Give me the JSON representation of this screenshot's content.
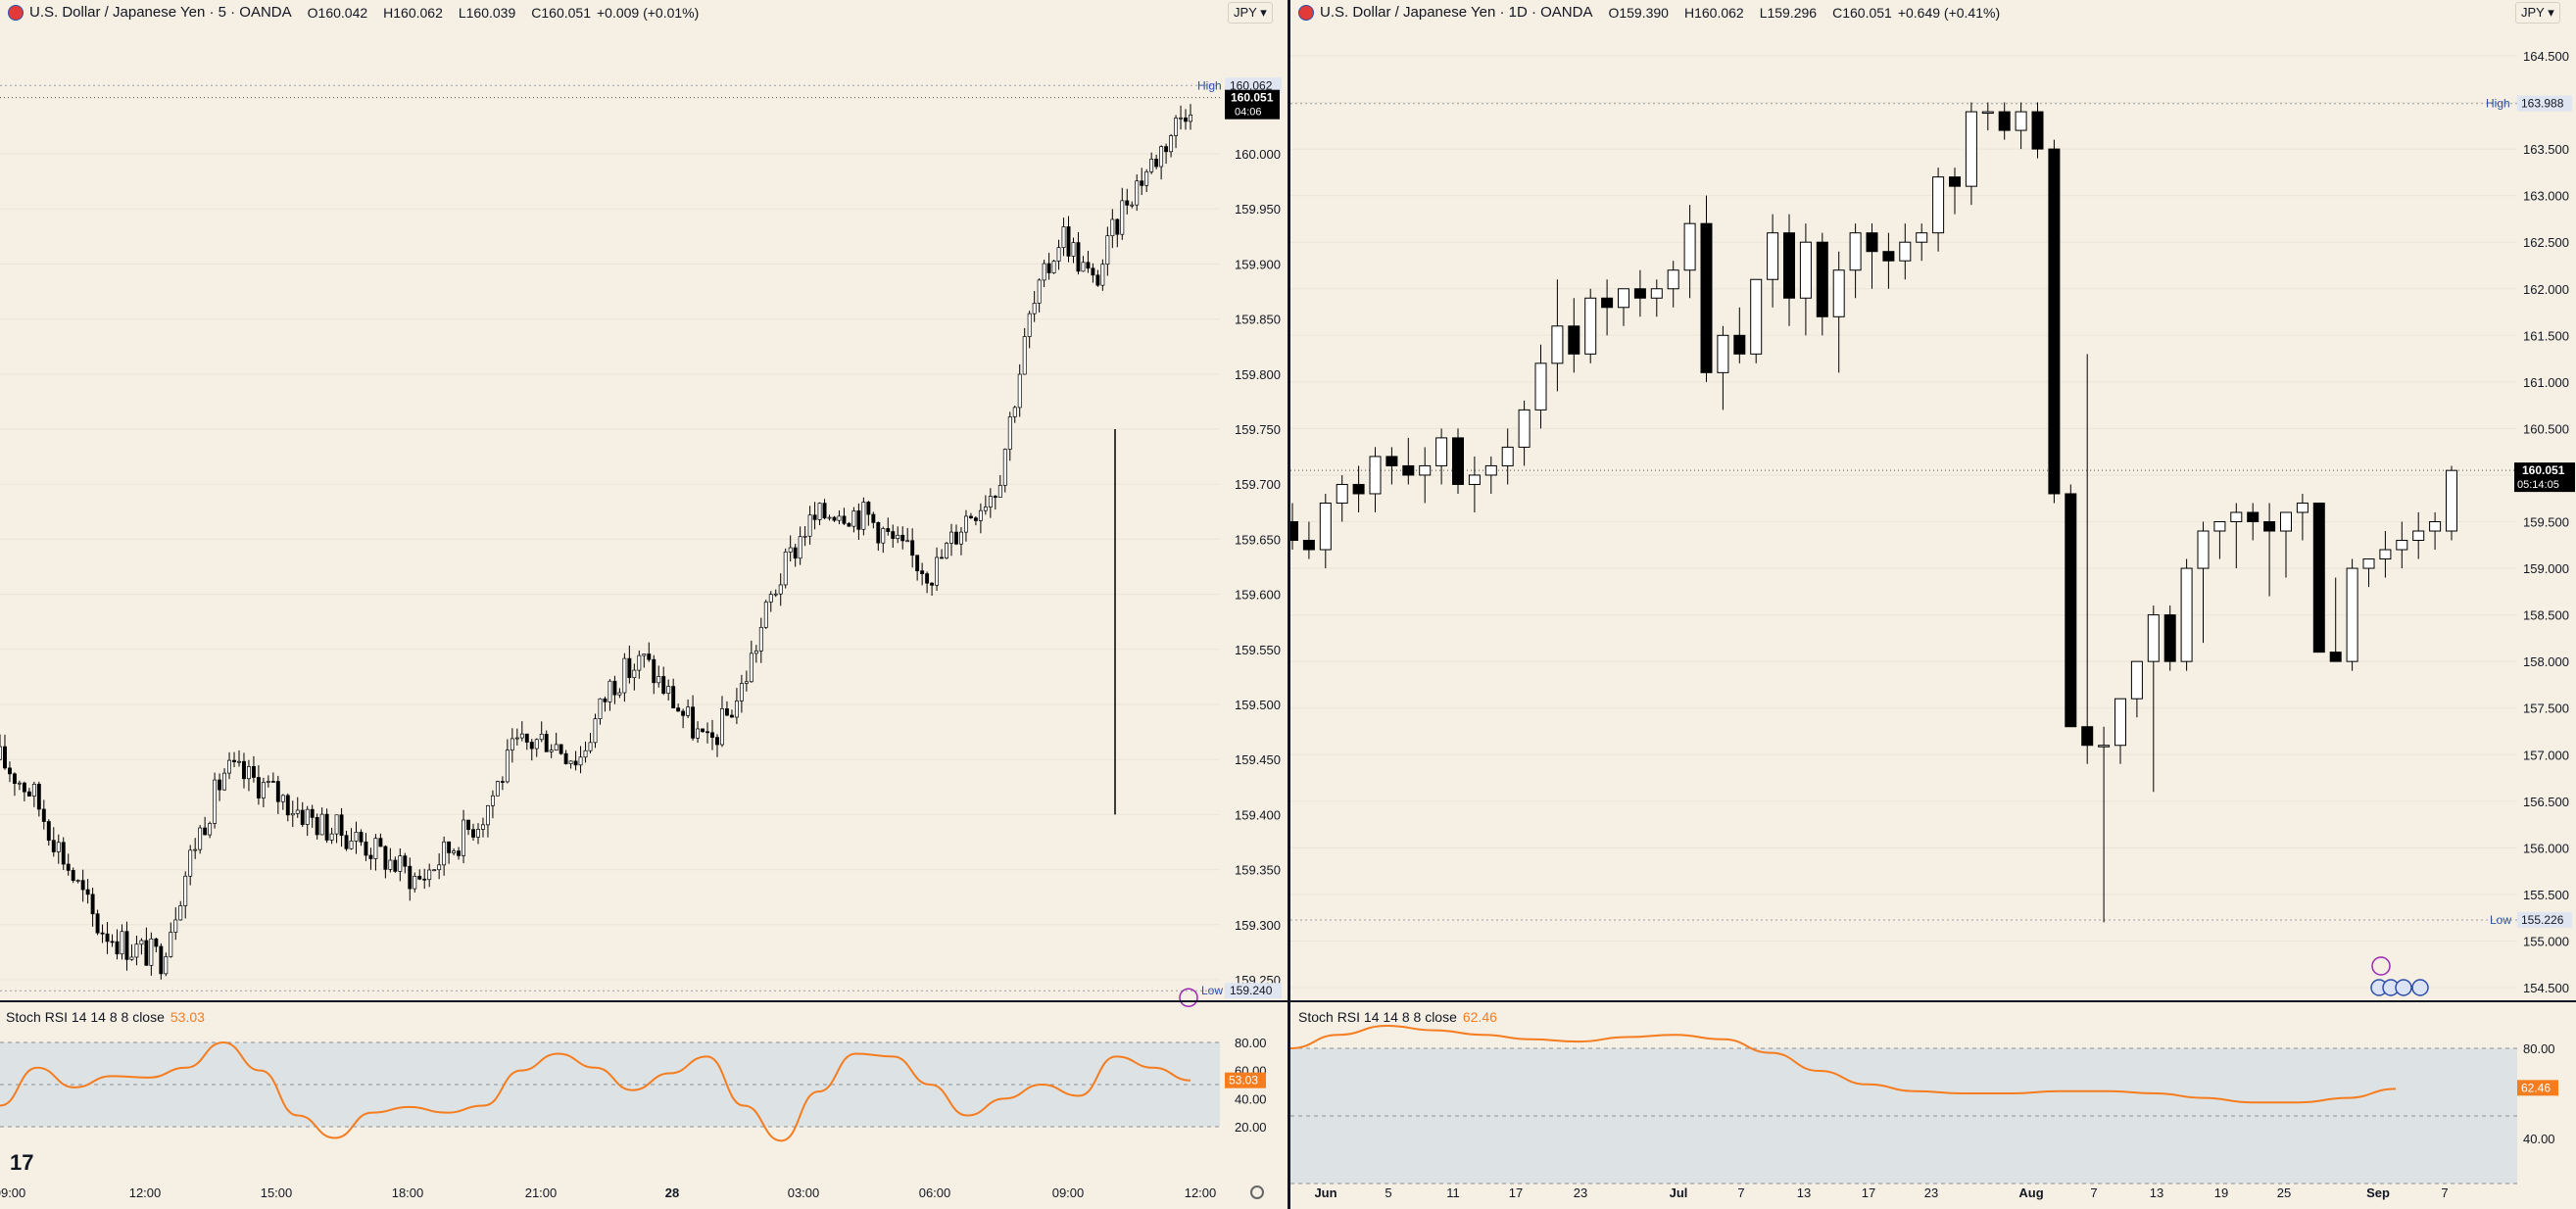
{
  "left_panel": {
    "symbol": "U.S. Dollar / Japanese Yen · 5 · OANDA",
    "open": "O160.042",
    "high": "H160.062",
    "low": "L160.039",
    "close": "C160.051",
    "change": "+0.009 (+0.01%)",
    "currency": "JPY",
    "price_axis": [
      "160.000",
      "159.950",
      "159.900",
      "159.850",
      "159.800",
      "159.750",
      "159.700",
      "159.650",
      "159.600",
      "159.550",
      "159.500",
      "159.450",
      "159.400",
      "159.350",
      "159.300",
      "159.250"
    ],
    "high_label": "High",
    "high_value": "160.062",
    "low_label": "Low",
    "low_value": "159.240",
    "last_price": "160.051",
    "countdown": "04:06",
    "time_axis": [
      "09:00",
      "12:00",
      "15:00",
      "18:00",
      "21:00",
      "28",
      "03:00",
      "06:00",
      "09:00",
      "12:00"
    ],
    "indicator": {
      "name": "Stoch RSI 14 14 8 8 close",
      "value": "53.03",
      "axis": [
        "80.00",
        "60.00",
        "40.00",
        "20.00"
      ]
    }
  },
  "right_panel": {
    "symbol": "U.S. Dollar / Japanese Yen · 1D · OANDA",
    "open": "O159.390",
    "high": "H160.062",
    "low": "L159.296",
    "close": "C160.051",
    "change": "+0.649 (+0.41%)",
    "currency": "JPY",
    "price_axis": [
      "164.500",
      "164.000",
      "163.500",
      "163.000",
      "162.500",
      "162.000",
      "161.500",
      "161.000",
      "160.500",
      "160.000",
      "159.500",
      "159.000",
      "158.500",
      "158.000",
      "157.500",
      "157.000",
      "156.500",
      "156.000",
      "155.500",
      "155.000",
      "154.500"
    ],
    "high_label": "High",
    "high_value": "163.988",
    "low_label": "Low",
    "low_value": "155.226",
    "last_price": "160.051",
    "countdown": "05:14:05",
    "time_axis": [
      "Jun",
      "5",
      "11",
      "17",
      "23",
      "Jul",
      "7",
      "13",
      "17",
      "23",
      "Aug",
      "7",
      "13",
      "19",
      "25",
      "Sep",
      "7"
    ],
    "indicator": {
      "name": "Stoch RSI 14 14 8 8 close",
      "value": "62.46",
      "axis": [
        "80.00",
        "40.00"
      ]
    }
  },
  "colors": {
    "background": "#f5efe4",
    "candle_up": "#ffffff",
    "candle_down": "#000000",
    "stoch": "#f57c1f",
    "band": "#dde3e4"
  },
  "chart_data": [
    {
      "type": "candlestick",
      "title": "U.S. Dollar / Japanese Yen · 5 · OANDA",
      "ylim": [
        159.23,
        160.08
      ],
      "x_ticks": [
        "09:00",
        "12:00",
        "15:00",
        "18:00",
        "21:00",
        "28",
        "03:00",
        "06:00",
        "09:00",
        "12:00"
      ],
      "close_path": [
        159.45,
        159.42,
        159.36,
        159.3,
        159.28,
        159.27,
        159.37,
        159.44,
        159.43,
        159.41,
        159.39,
        159.38,
        159.36,
        159.34,
        159.37,
        159.4,
        159.46,
        159.47,
        159.45,
        159.52,
        159.54,
        159.5,
        159.46,
        159.51,
        159.6,
        159.66,
        159.68,
        159.67,
        159.64,
        159.62,
        159.67,
        159.7,
        159.85,
        159.93,
        159.88,
        159.96,
        160.0,
        160.05
      ],
      "high": 160.062,
      "low": 159.24,
      "last": 160.051,
      "indicator": {
        "name": "Stoch RSI",
        "last": 53.03,
        "ylim": [
          10,
          90
        ],
        "values": [
          35,
          62,
          48,
          56,
          55,
          62,
          80,
          60,
          28,
          12,
          30,
          34,
          30,
          35,
          60,
          72,
          62,
          46,
          58,
          70,
          35,
          10,
          45,
          72,
          70,
          50,
          28,
          40,
          50,
          42,
          70,
          62,
          53
        ]
      }
    },
    {
      "type": "candlestick",
      "title": "U.S. Dollar / Japanese Yen · 1D · OANDA",
      "ylim": [
        154.3,
        164.7
      ],
      "x_ticks": [
        "Jun",
        "5",
        "11",
        "17",
        "23",
        "Jul",
        "7",
        "13",
        "17",
        "23",
        "Aug",
        "7",
        "13",
        "19",
        "25",
        "Sep",
        "7"
      ],
      "candles": [
        [
          159.5,
          159.7,
          159.2,
          159.3
        ],
        [
          159.3,
          159.5,
          159.1,
          159.2
        ],
        [
          159.2,
          159.8,
          159.0,
          159.7
        ],
        [
          159.7,
          160.0,
          159.5,
          159.9
        ],
        [
          159.9,
          160.1,
          159.6,
          159.8
        ],
        [
          159.8,
          160.3,
          159.6,
          160.2
        ],
        [
          160.2,
          160.3,
          159.9,
          160.1
        ],
        [
          160.1,
          160.4,
          159.9,
          160.0
        ],
        [
          160.0,
          160.3,
          159.7,
          160.1
        ],
        [
          160.1,
          160.5,
          159.9,
          160.4
        ],
        [
          160.4,
          160.5,
          159.8,
          159.9
        ],
        [
          159.9,
          160.2,
          159.6,
          160.0
        ],
        [
          160.0,
          160.2,
          159.8,
          160.1
        ],
        [
          160.1,
          160.5,
          159.9,
          160.3
        ],
        [
          160.3,
          160.8,
          160.1,
          160.7
        ],
        [
          160.7,
          161.4,
          160.5,
          161.2
        ],
        [
          161.2,
          162.1,
          160.9,
          161.6
        ],
        [
          161.6,
          161.9,
          161.1,
          161.3
        ],
        [
          161.3,
          162.0,
          161.2,
          161.9
        ],
        [
          161.9,
          162.1,
          161.5,
          161.8
        ],
        [
          161.8,
          162.0,
          161.6,
          162.0
        ],
        [
          162.0,
          162.2,
          161.7,
          161.9
        ],
        [
          161.9,
          162.1,
          161.7,
          162.0
        ],
        [
          162.0,
          162.3,
          161.8,
          162.2
        ],
        [
          162.2,
          162.9,
          161.9,
          162.7
        ],
        [
          162.7,
          163.0,
          161.0,
          161.1
        ],
        [
          161.1,
          161.6,
          160.7,
          161.5
        ],
        [
          161.5,
          161.8,
          161.2,
          161.3
        ],
        [
          161.3,
          162.1,
          161.2,
          162.1
        ],
        [
          162.1,
          162.8,
          161.8,
          162.6
        ],
        [
          162.6,
          162.8,
          161.6,
          161.9
        ],
        [
          161.9,
          162.7,
          161.5,
          162.5
        ],
        [
          162.5,
          162.6,
          161.5,
          161.7
        ],
        [
          161.7,
          162.4,
          161.1,
          162.2
        ],
        [
          162.2,
          162.7,
          161.9,
          162.6
        ],
        [
          162.6,
          162.7,
          162.0,
          162.4
        ],
        [
          162.4,
          162.6,
          162.0,
          162.3
        ],
        [
          162.3,
          162.7,
          162.1,
          162.5
        ],
        [
          162.5,
          162.7,
          162.3,
          162.6
        ],
        [
          162.6,
          163.3,
          162.4,
          163.2
        ],
        [
          163.2,
          163.3,
          162.8,
          163.1
        ],
        [
          163.1,
          164.0,
          162.9,
          163.9
        ],
        [
          163.9,
          164.0,
          163.7,
          163.9
        ],
        [
          163.9,
          164.0,
          163.6,
          163.7
        ],
        [
          163.7,
          164.0,
          163.5,
          163.9
        ],
        [
          163.9,
          164.0,
          163.4,
          163.5
        ],
        [
          163.5,
          163.6,
          159.7,
          159.8
        ],
        [
          159.8,
          159.9,
          157.3,
          157.3
        ],
        [
          157.3,
          161.3,
          156.9,
          157.1
        ],
        [
          157.1,
          157.3,
          155.2,
          157.1
        ],
        [
          157.1,
          157.6,
          156.9,
          157.6
        ],
        [
          157.6,
          158.0,
          157.4,
          158.0
        ],
        [
          158.0,
          158.6,
          156.6,
          158.5
        ],
        [
          158.5,
          158.6,
          157.9,
          158.0
        ],
        [
          158.0,
          159.1,
          157.9,
          159.0
        ],
        [
          159.0,
          159.5,
          158.2,
          159.4
        ],
        [
          159.4,
          159.5,
          159.1,
          159.5
        ],
        [
          159.5,
          159.7,
          159.0,
          159.6
        ],
        [
          159.6,
          159.7,
          159.3,
          159.5
        ],
        [
          159.5,
          159.7,
          158.7,
          159.4
        ],
        [
          159.4,
          159.6,
          158.9,
          159.6
        ],
        [
          159.6,
          159.8,
          159.3,
          159.7
        ],
        [
          159.7,
          159.7,
          158.1,
          158.1
        ],
        [
          158.1,
          158.9,
          158.0,
          158.0
        ],
        [
          158.0,
          159.1,
          157.9,
          159.0
        ],
        [
          159.0,
          159.1,
          158.8,
          159.1
        ],
        [
          159.1,
          159.4,
          158.9,
          159.2
        ],
        [
          159.2,
          159.5,
          159.0,
          159.3
        ],
        [
          159.3,
          159.6,
          159.1,
          159.4
        ],
        [
          159.4,
          159.6,
          159.2,
          159.5
        ],
        [
          159.4,
          160.1,
          159.3,
          160.05
        ]
      ],
      "high": 163.988,
      "low": 155.226,
      "last": 160.051,
      "indicator": {
        "name": "Stoch RSI",
        "last": 62.46,
        "ylim": [
          20,
          95
        ],
        "values": [
          80,
          86,
          90,
          88,
          86,
          84,
          83,
          85,
          86,
          84,
          78,
          70,
          64,
          61,
          60,
          60,
          61,
          61,
          60,
          58,
          56,
          56,
          58,
          62
        ]
      }
    }
  ]
}
